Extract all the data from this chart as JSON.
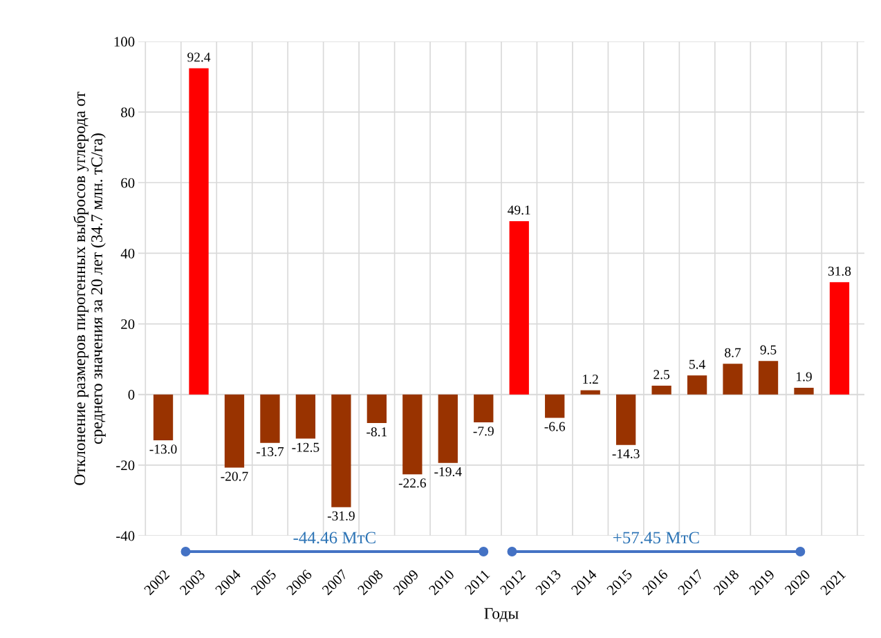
{
  "chart_data": {
    "type": "bar",
    "xlabel": "Годы",
    "ylabel": "Отклонение размеров пирогенных выбросов углерода от\nсреднего значения за 20 лет (34.7 млн. тС/га)",
    "categories": [
      "2002",
      "2003",
      "2004",
      "2005",
      "2006",
      "2007",
      "2008",
      "2009",
      "2010",
      "2011",
      "2012",
      "2013",
      "2014",
      "2015",
      "2016",
      "2017",
      "2018",
      "2019",
      "2020",
      "2021"
    ],
    "values": [
      -13.0,
      92.4,
      -20.7,
      -13.7,
      -12.5,
      -31.9,
      -8.1,
      -22.6,
      -19.4,
      -7.9,
      49.1,
      -6.6,
      1.2,
      -14.3,
      2.5,
      5.4,
      8.7,
      9.5,
      1.9,
      31.8
    ],
    "value_labels": [
      "-13.0",
      "92.4",
      "-20.7",
      "-13.7",
      "-12.5",
      "-31.9",
      "-8.1",
      "-22.6",
      "-19.4",
      "-7.9",
      "49.1",
      "-6.6",
      "1.2",
      "-14.3",
      "2.5",
      "5.4",
      "8.7",
      "9.5",
      "1.9",
      "31.8"
    ],
    "colors": [
      "#993300",
      "#ff0000",
      "#993300",
      "#993300",
      "#993300",
      "#993300",
      "#993300",
      "#993300",
      "#993300",
      "#993300",
      "#ff0000",
      "#993300",
      "#993300",
      "#993300",
      "#993300",
      "#993300",
      "#993300",
      "#993300",
      "#993300",
      "#ff0000"
    ],
    "ylim": [
      -40,
      100
    ],
    "yticks": [
      -40,
      -20,
      0,
      20,
      40,
      60,
      80,
      100
    ],
    "grid": true,
    "annotations": [
      "-44.46 МтС",
      "+57.45 МтС"
    ]
  }
}
